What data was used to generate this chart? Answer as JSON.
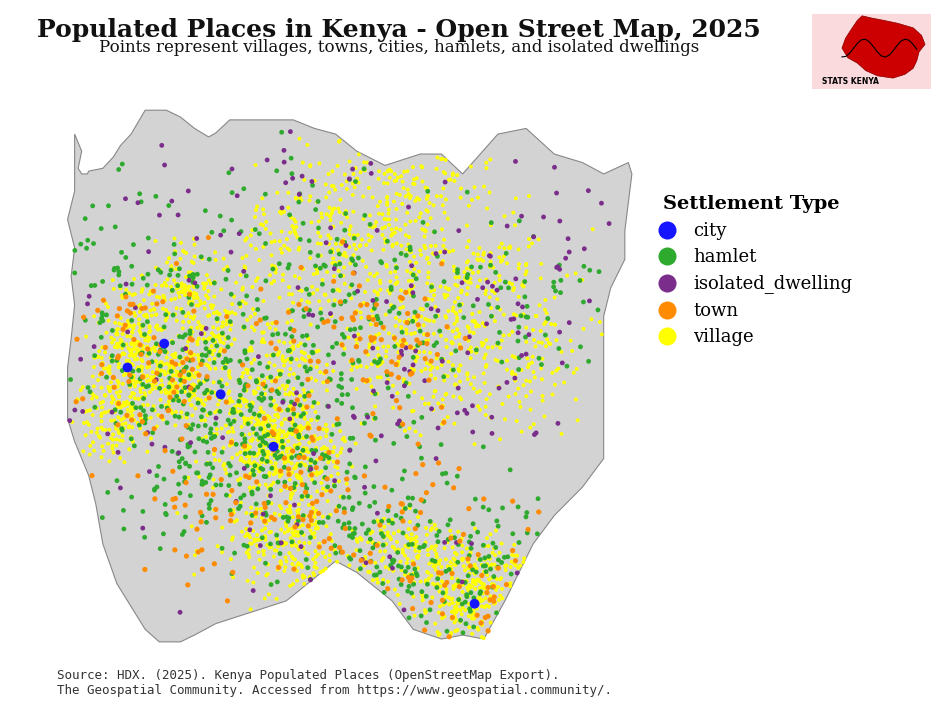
{
  "title": "Populated Places in Kenya - Open Street Map, 2025",
  "subtitle": "Points represent villages, towns, cities, hamlets, and isolated dwellings",
  "source_text": "Source: HDX. (2025). Kenya Populated Places (OpenStreetMap Export).\nThe Geospatial Community. Accessed from https://www.geospatial.community/.",
  "legend_title": "Settlement Type",
  "settlement_types": [
    "city",
    "hamlet",
    "isolated_dwelling",
    "town",
    "village"
  ],
  "colors": {
    "city": "#1515FF",
    "hamlet": "#2EAA2E",
    "isolated_dwelling": "#7B2D8B",
    "town": "#FF8C00",
    "village": "#FFFF00"
  },
  "marker_sizes": {
    "city": 50,
    "hamlet": 12,
    "isolated_dwelling": 12,
    "town": 14,
    "village": 8
  },
  "map_bg_color": "#D3D3D3",
  "fig_bg_color": "#FFFFFF",
  "title_fontsize": 18,
  "subtitle_fontsize": 12,
  "source_fontsize": 9,
  "logo_bg": "#FFE4E1",
  "kenya_lon_min": 33.9,
  "kenya_lon_max": 41.9,
  "kenya_lat_min": -4.72,
  "kenya_lat_max": 5.02
}
